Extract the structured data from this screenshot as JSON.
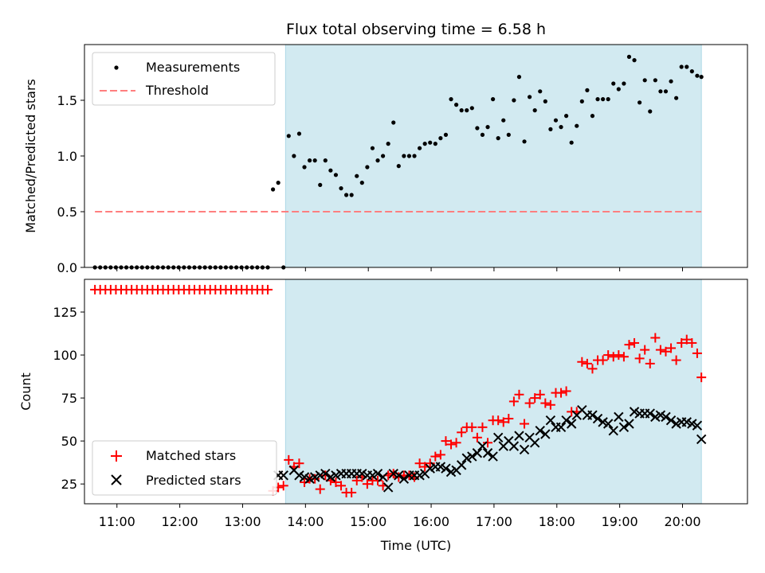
{
  "colors": {
    "shade": "#add8e6",
    "measurement": "#000000",
    "threshold": "#ff7f7f",
    "matched": "#ff0000",
    "predicted": "#000000"
  },
  "chart_data": [
    {
      "type": "scatter",
      "title": "Flux total observing time = 6.58 h",
      "ylabel": "Matched/Predicted stars",
      "xlim": [
        "10:29",
        "21:02"
      ],
      "ylim": [
        0,
        2.0
      ],
      "yticks": [
        0.0,
        0.5,
        1.0,
        1.5
      ],
      "ytick_labels": [
        "0.0",
        "0.5",
        "1.0",
        "1.5"
      ],
      "shaded_region": [
        "13:41",
        "20:18"
      ],
      "legend": {
        "placement": "upper-left",
        "entries": [
          {
            "label": "Measurements",
            "marker": "dot"
          },
          {
            "label": "Threshold",
            "marker": "dashed-line"
          }
        ]
      },
      "threshold": {
        "y": 0.5,
        "x_start": "10:39",
        "x_end": "20:18"
      },
      "series": [
        {
          "name": "Measurements",
          "marker": "dot",
          "x": [
            "10:39",
            "10:44",
            "10:49",
            "10:54",
            "10:59",
            "11:04",
            "11:09",
            "11:14",
            "11:19",
            "11:24",
            "11:29",
            "11:34",
            "11:39",
            "11:44",
            "11:49",
            "11:54",
            "11:59",
            "12:04",
            "12:09",
            "12:14",
            "12:19",
            "12:24",
            "12:29",
            "12:34",
            "12:39",
            "12:44",
            "12:49",
            "12:54",
            "12:59",
            "13:04",
            "13:09",
            "13:14",
            "13:19",
            "13:24",
            "13:29",
            "13:34",
            "13:39",
            "13:44",
            "13:49",
            "13:54",
            "13:59",
            "14:04",
            "14:09",
            "14:14",
            "14:19",
            "14:24",
            "14:29",
            "14:34",
            "14:39",
            "14:44",
            "14:49",
            "14:54",
            "14:59",
            "15:04",
            "15:09",
            "15:14",
            "15:19",
            "15:24",
            "15:29",
            "15:34",
            "15:39",
            "15:44",
            "15:49",
            "15:54",
            "15:59",
            "16:04",
            "16:09",
            "16:14",
            "16:19",
            "16:24",
            "16:29",
            "16:34",
            "16:39",
            "16:44",
            "16:49",
            "16:54",
            "16:59",
            "17:04",
            "17:09",
            "17:14",
            "17:19",
            "17:24",
            "17:29",
            "17:34",
            "17:39",
            "17:44",
            "17:49",
            "17:54",
            "17:59",
            "18:04",
            "18:09",
            "18:14",
            "18:19",
            "18:24",
            "18:29",
            "18:34",
            "18:39",
            "18:44",
            "18:49",
            "18:54",
            "18:59",
            "19:04",
            "19:09",
            "19:14",
            "19:19",
            "19:24",
            "19:29",
            "19:34",
            "19:39",
            "19:44",
            "19:49",
            "19:54",
            "19:59",
            "20:04",
            "20:09",
            "20:14",
            "20:18"
          ],
          "y": [
            0,
            0,
            0,
            0,
            0,
            0,
            0,
            0,
            0,
            0,
            0,
            0,
            0,
            0,
            0,
            0,
            0,
            0,
            0,
            0,
            0,
            0,
            0,
            0,
            0,
            0,
            0,
            0,
            0,
            0,
            0,
            0,
            0,
            0,
            0.7,
            0.76,
            0,
            1.18,
            1.0,
            1.2,
            0.9,
            0.96,
            0.96,
            0.74,
            0.96,
            0.87,
            0.83,
            0.71,
            0.65,
            0.65,
            0.82,
            0.76,
            0.9,
            1.07,
            0.96,
            1.0,
            1.11,
            1.3,
            0.91,
            1.0,
            1.0,
            1.0,
            1.07,
            1.11,
            1.12,
            1.11,
            1.16,
            1.19,
            1.51,
            1.46,
            1.41,
            1.41,
            1.43,
            1.25,
            1.19,
            1.26,
            1.51,
            1.16,
            1.32,
            1.19,
            1.5,
            1.71,
            1.13,
            1.53,
            1.41,
            1.58,
            1.49,
            1.24,
            1.32,
            1.26,
            1.36,
            1.12,
            1.27,
            1.49,
            1.59,
            1.36,
            1.51,
            1.51,
            1.51,
            1.65,
            1.6,
            1.65,
            1.89,
            1.86,
            1.48,
            1.68,
            1.4,
            1.68,
            1.58,
            1.58,
            1.67,
            1.52,
            1.8,
            1.8,
            1.76,
            1.72,
            1.71
          ]
        }
      ]
    },
    {
      "type": "scatter",
      "xlabel": "Time (UTC)",
      "ylabel": "Count",
      "xlim": [
        "10:29",
        "21:02"
      ],
      "ylim": [
        13.5,
        144
      ],
      "yticks": [
        25,
        50,
        75,
        100,
        125
      ],
      "ytick_labels": [
        "25",
        "50",
        "75",
        "100",
        "125"
      ],
      "xticks": [
        "11:00",
        "12:00",
        "13:00",
        "14:00",
        "15:00",
        "16:00",
        "17:00",
        "18:00",
        "19:00",
        "20:00"
      ],
      "shaded_region": [
        "13:41",
        "20:18"
      ],
      "legend": {
        "placement": "lower-left",
        "entries": [
          {
            "label": "Matched stars",
            "marker": "plus"
          },
          {
            "label": "Predicted stars",
            "marker": "x"
          }
        ]
      },
      "series": [
        {
          "name": "Matched stars",
          "marker": "plus",
          "x": [
            "10:39",
            "10:44",
            "10:49",
            "10:54",
            "10:59",
            "11:04",
            "11:09",
            "11:14",
            "11:19",
            "11:24",
            "11:29",
            "11:34",
            "11:39",
            "11:44",
            "11:49",
            "11:54",
            "11:59",
            "12:04",
            "12:09",
            "12:14",
            "12:19",
            "12:24",
            "12:29",
            "12:34",
            "12:39",
            "12:44",
            "12:49",
            "12:54",
            "12:59",
            "13:04",
            "13:09",
            "13:14",
            "13:19",
            "13:24",
            "13:29",
            "13:34",
            "13:39",
            "13:44",
            "13:49",
            "13:54",
            "13:59",
            "14:04",
            "14:09",
            "14:14",
            "14:19",
            "14:24",
            "14:29",
            "14:34",
            "14:39",
            "14:44",
            "14:49",
            "14:54",
            "14:59",
            "15:04",
            "15:09",
            "15:14",
            "15:19",
            "15:24",
            "15:29",
            "15:34",
            "15:39",
            "15:44",
            "15:49",
            "15:54",
            "15:59",
            "16:04",
            "16:09",
            "16:14",
            "16:19",
            "16:24",
            "16:29",
            "16:34",
            "16:39",
            "16:44",
            "16:49",
            "16:54",
            "16:59",
            "17:04",
            "17:09",
            "17:14",
            "17:19",
            "17:24",
            "17:29",
            "17:34",
            "17:39",
            "17:44",
            "17:49",
            "17:54",
            "17:59",
            "18:04",
            "18:09",
            "18:14",
            "18:19",
            "18:24",
            "18:29",
            "18:34",
            "18:39",
            "18:44",
            "18:49",
            "18:54",
            "18:59",
            "19:04",
            "19:09",
            "19:14",
            "19:19",
            "19:24",
            "19:29",
            "19:34",
            "19:39",
            "19:44",
            "19:49",
            "19:54",
            "19:59",
            "20:04",
            "20:09",
            "20:14",
            "20:18"
          ],
          "y": [
            138,
            138,
            138,
            138,
            138,
            138,
            138,
            138,
            138,
            138,
            138,
            138,
            138,
            138,
            138,
            138,
            138,
            138,
            138,
            138,
            138,
            138,
            138,
            138,
            138,
            138,
            138,
            138,
            138,
            138,
            138,
            138,
            138,
            138,
            21,
            23,
            24,
            39,
            35,
            37,
            26,
            28,
            28,
            22,
            30,
            27,
            26,
            24,
            20,
            20,
            27,
            29,
            25,
            27,
            27,
            24,
            30,
            31,
            29,
            30,
            30,
            29,
            37,
            35,
            37,
            41,
            42,
            50,
            48,
            49,
            55,
            58,
            58,
            52,
            58,
            49,
            62,
            62,
            61,
            63,
            73,
            77,
            60,
            72,
            75,
            77,
            72,
            71,
            78,
            78,
            79,
            67,
            67,
            96,
            95,
            92,
            97,
            97,
            100,
            99,
            100,
            99,
            106,
            107,
            98,
            103,
            95,
            110,
            103,
            102,
            104,
            97,
            107,
            109,
            107,
            101,
            87
          ]
        },
        {
          "name": "Predicted stars",
          "marker": "x",
          "x": [
            "13:34",
            "13:39",
            "13:49",
            "13:54",
            "13:59",
            "14:04",
            "14:09",
            "14:14",
            "14:19",
            "14:24",
            "14:29",
            "14:34",
            "14:39",
            "14:44",
            "14:49",
            "14:54",
            "14:59",
            "15:04",
            "15:09",
            "15:14",
            "15:19",
            "15:24",
            "15:29",
            "15:34",
            "15:39",
            "15:44",
            "15:49",
            "15:54",
            "15:59",
            "16:04",
            "16:09",
            "16:14",
            "16:19",
            "16:24",
            "16:29",
            "16:34",
            "16:39",
            "16:44",
            "16:49",
            "16:54",
            "16:59",
            "17:04",
            "17:09",
            "17:14",
            "17:19",
            "17:24",
            "17:29",
            "17:34",
            "17:39",
            "17:44",
            "17:49",
            "17:54",
            "17:59",
            "18:04",
            "18:09",
            "18:14",
            "18:19",
            "18:24",
            "18:29",
            "18:34",
            "18:39",
            "18:44",
            "18:49",
            "18:54",
            "18:59",
            "19:04",
            "19:09",
            "19:14",
            "19:19",
            "19:24",
            "19:29",
            "19:34",
            "19:39",
            "19:44",
            "19:49",
            "19:54",
            "19:59",
            "20:04",
            "20:09",
            "20:14",
            "20:18"
          ],
          "y": [
            30,
            30,
            33,
            30,
            29,
            28,
            29,
            30,
            31,
            29,
            30,
            31,
            31,
            31,
            31,
            31,
            30,
            30,
            31,
            29,
            23,
            31,
            30,
            28,
            30,
            30,
            30,
            31,
            34,
            35,
            35,
            34,
            32,
            33,
            36,
            40,
            41,
            43,
            47,
            43,
            41,
            52,
            47,
            50,
            47,
            53,
            45,
            52,
            49,
            56,
            54,
            62,
            58,
            58,
            62,
            60,
            65,
            68,
            65,
            65,
            63,
            61,
            60,
            56,
            64,
            58,
            60,
            67,
            66,
            66,
            66,
            64,
            65,
            64,
            62,
            60,
            61,
            61,
            60,
            59,
            51
          ]
        }
      ]
    }
  ]
}
